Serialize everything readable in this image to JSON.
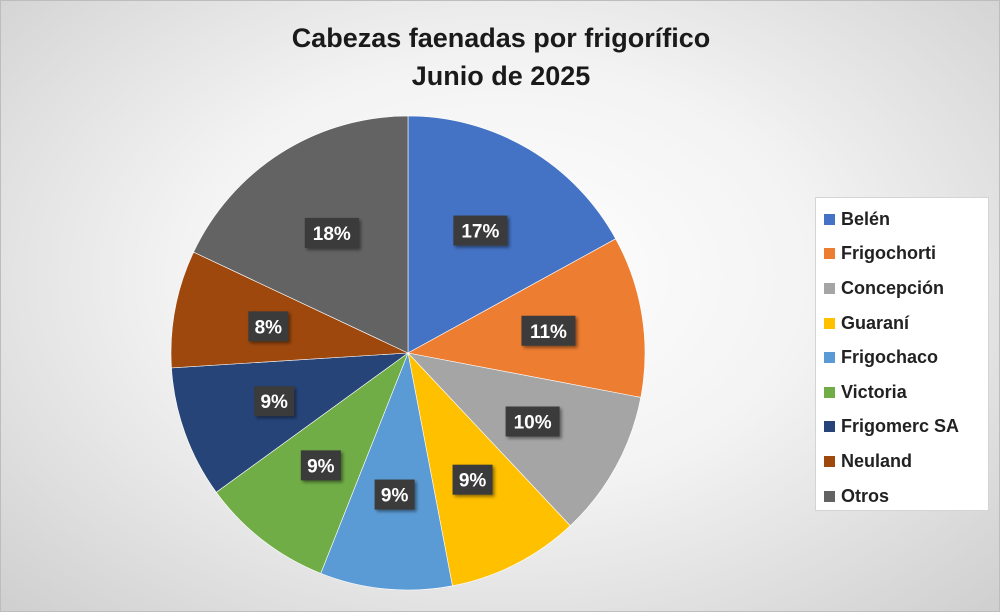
{
  "chart_data": {
    "type": "pie",
    "title": "Cabezas faenadas por frigorífico",
    "subtitle": "Junio de 2025",
    "categories": [
      "Belén",
      "Frigochorti",
      "Concepción",
      "Guaraní",
      "Frigochaco",
      "Victoria",
      "Frigomerc SA",
      "Neuland",
      "Otros"
    ],
    "values": [
      17,
      11,
      10,
      9,
      9,
      9,
      9,
      8,
      18
    ],
    "labels": [
      "17%",
      "11%",
      "10%",
      "9%",
      "9%",
      "9%",
      "9%",
      "8%",
      "18%"
    ],
    "colors": [
      "#4472C4",
      "#ED7D31",
      "#A5A5A5",
      "#FFC000",
      "#5B9BD5",
      "#70AD47",
      "#264478",
      "#9E480E",
      "#636363"
    ],
    "legend_position": "right"
  }
}
